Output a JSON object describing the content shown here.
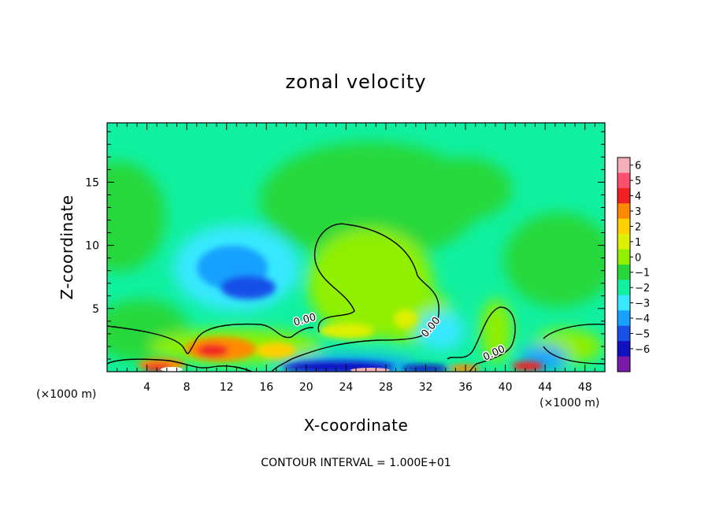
{
  "chart_data": {
    "type": "heatmap",
    "title": "zonal velocity",
    "xlabel": "X-coordinate",
    "ylabel": "Z-coordinate",
    "x_unit_left": "(×1000 m)",
    "x_unit_right": "(×1000 m)",
    "x_ticks": [
      4,
      8,
      12,
      16,
      20,
      24,
      28,
      32,
      36,
      40,
      44,
      48
    ],
    "y_ticks": [
      5,
      10,
      15
    ],
    "xlim": [
      0,
      50
    ],
    "ylim": [
      0,
      19.7
    ],
    "colorbar": {
      "labels": [
        "6",
        "5",
        "4",
        "3",
        "2",
        "1",
        "0",
        "−1",
        "−2",
        "−3",
        "−4",
        "−5",
        "−6"
      ],
      "colors": [
        "#f4b0b8",
        "#ff4f6e",
        "#f02020",
        "#ff8a00",
        "#ffd000",
        "#ddf000",
        "#90f000",
        "#28d83a",
        "#10f0a0",
        "#38e8ff",
        "#18a0ff",
        "#1850e8",
        "#1010c0",
        "#7a1aa8"
      ]
    },
    "contour_labels": [
      "0.00",
      "0.00",
      "0.00"
    ],
    "footer": "CONTOUR INTERVAL = 1.000E+01"
  }
}
